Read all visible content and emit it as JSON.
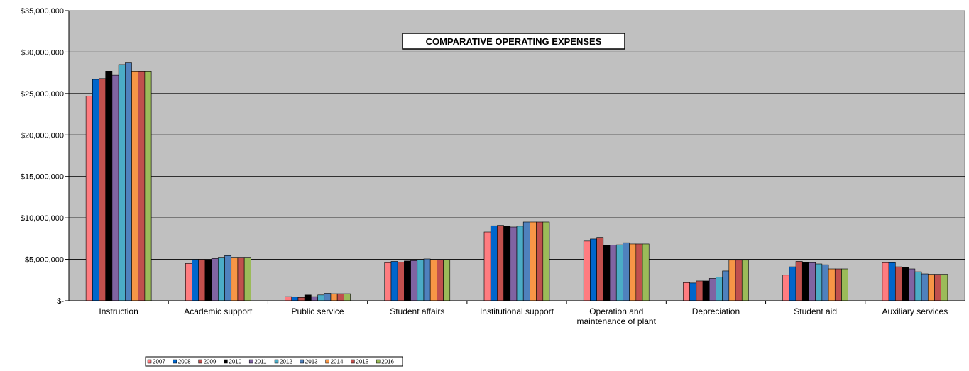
{
  "chart_data": {
    "type": "bar",
    "title": "COMPARATIVE OPERATING EXPENSES",
    "xlabel": "",
    "ylabel": "",
    "ylim": [
      0,
      35000000
    ],
    "yticks": [
      0,
      5000000,
      10000000,
      15000000,
      20000000,
      25000000,
      30000000,
      35000000
    ],
    "ytick_labels": [
      "$-",
      "$5,000,000",
      "$10,000,000",
      "$15,000,000",
      "$20,000,000",
      "$25,000,000",
      "$30,000,000",
      "$35,000,000"
    ],
    "grid": true,
    "legend_position": "bottom-left",
    "plot_background": "#c0c0c0",
    "categories": [
      [
        "Instruction"
      ],
      [
        "Academic support"
      ],
      [
        "Public service"
      ],
      [
        "Student affairs"
      ],
      [
        "Institutional support"
      ],
      [
        "Operation and",
        "maintenance of plant"
      ],
      [
        "Depreciation"
      ],
      [
        "Student aid"
      ],
      [
        "Auxiliary services"
      ]
    ],
    "series": [
      {
        "name": "2007",
        "color": "#ff7c80",
        "values": [
          24700000,
          4500000,
          500000,
          4600000,
          8300000,
          7200000,
          2200000,
          3100000,
          4600000
        ]
      },
      {
        "name": "2008",
        "color": "#0066cc",
        "values": [
          26700000,
          5000000,
          450000,
          4750000,
          9050000,
          7450000,
          2150000,
          4100000,
          4600000
        ]
      },
      {
        "name": "2009",
        "color": "#c0504d",
        "values": [
          26800000,
          5000000,
          400000,
          4650000,
          9100000,
          7650000,
          2400000,
          4750000,
          4100000
        ]
      },
      {
        "name": "2010",
        "color": "#000000",
        "values": [
          27700000,
          4950000,
          700000,
          4800000,
          9000000,
          6700000,
          2400000,
          4650000,
          4000000
        ]
      },
      {
        "name": "2011",
        "color": "#8064a2",
        "values": [
          27200000,
          5100000,
          500000,
          4850000,
          8900000,
          6700000,
          2700000,
          4600000,
          3850000
        ]
      },
      {
        "name": "2012",
        "color": "#4bacc6",
        "values": [
          28500000,
          5250000,
          700000,
          4950000,
          9000000,
          6750000,
          2850000,
          4450000,
          3500000
        ]
      },
      {
        "name": "2013",
        "color": "#4f81bd",
        "values": [
          28700000,
          5450000,
          900000,
          5050000,
          9500000,
          7000000,
          3600000,
          4350000,
          3250000
        ]
      },
      {
        "name": "2014",
        "color": "#f79646",
        "values": [
          27700000,
          5250000,
          850000,
          4950000,
          9500000,
          6850000,
          4900000,
          3850000,
          3200000
        ]
      },
      {
        "name": "2015",
        "color": "#c0504d",
        "values": [
          27700000,
          5250000,
          850000,
          4950000,
          9500000,
          6850000,
          4900000,
          3850000,
          3200000
        ]
      },
      {
        "name": "2016",
        "color": "#9bbb59",
        "values": [
          27700000,
          5250000,
          850000,
          4950000,
          9500000,
          6850000,
          4900000,
          3850000,
          3200000
        ]
      }
    ]
  }
}
